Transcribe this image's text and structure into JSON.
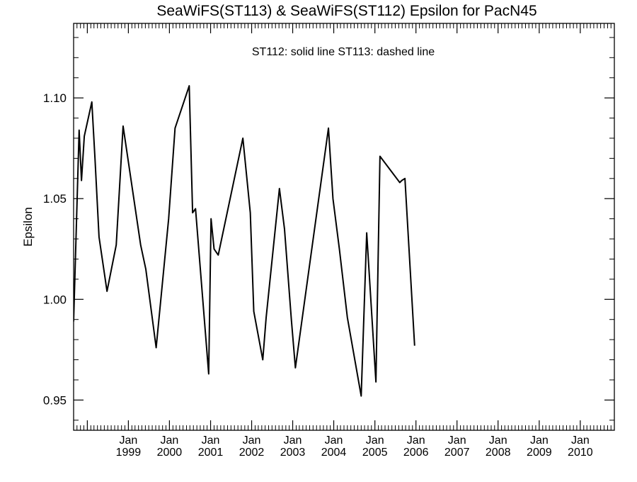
{
  "chart_data": {
    "type": "line",
    "title": "SeaWiFS(ST113) & SeaWiFS(ST112)  Epsilon for PacN45",
    "annotation": "ST112: solid line   ST113: dashed line",
    "xlabel": "",
    "ylabel": "Epsilon",
    "xlim": [
      "1997-09-01",
      "2010-10-31"
    ],
    "ylim": [
      0.935,
      1.137
    ],
    "grid": false,
    "legend": "none",
    "y_ticks": [
      {
        "value": 0.95,
        "label": "0.95"
      },
      {
        "value": 1.0,
        "label": "1.00"
      },
      {
        "value": 1.05,
        "label": "1.05"
      },
      {
        "value": 1.1,
        "label": "1.10"
      }
    ],
    "x_ticks": [
      {
        "date": "1999-01-01",
        "month": "Jan",
        "year": "1999"
      },
      {
        "date": "2000-01-01",
        "month": "Jan",
        "year": "2000"
      },
      {
        "date": "2001-01-01",
        "month": "Jan",
        "year": "2001"
      },
      {
        "date": "2002-01-01",
        "month": "Jan",
        "year": "2002"
      },
      {
        "date": "2003-01-01",
        "month": "Jan",
        "year": "2003"
      },
      {
        "date": "2004-01-01",
        "month": "Jan",
        "year": "2004"
      },
      {
        "date": "2005-01-01",
        "month": "Jan",
        "year": "2005"
      },
      {
        "date": "2006-01-01",
        "month": "Jan",
        "year": "2006"
      },
      {
        "date": "2007-01-01",
        "month": "Jan",
        "year": "2007"
      },
      {
        "date": "2008-01-01",
        "month": "Jan",
        "year": "2008"
      },
      {
        "date": "2009-01-01",
        "month": "Jan",
        "year": "2009"
      },
      {
        "date": "2010-01-01",
        "month": "Jan",
        "year": "2010"
      }
    ],
    "series": [
      {
        "style": "solid",
        "color": "#000000",
        "points": [
          [
            "1997-09-01",
            0.989
          ],
          [
            "1997-10-20",
            1.084
          ],
          [
            "1997-11-10",
            1.059
          ],
          [
            "1997-12-05",
            1.081
          ],
          [
            "1998-02-10",
            1.098
          ],
          [
            "1998-03-10",
            1.07
          ],
          [
            "1998-04-15",
            1.031
          ],
          [
            "1998-06-25",
            1.004
          ],
          [
            "1998-09-15",
            1.027
          ],
          [
            "1998-11-15",
            1.086
          ],
          [
            "1999-04-20",
            1.027
          ],
          [
            "1999-06-05",
            1.015
          ],
          [
            "1999-09-05",
            0.976
          ],
          [
            "1999-12-25",
            1.04
          ],
          [
            "2000-02-20",
            1.085
          ],
          [
            "2000-05-20",
            1.1
          ],
          [
            "2000-06-25",
            1.106
          ],
          [
            "2000-07-25",
            1.043
          ],
          [
            "2000-08-20",
            1.045
          ],
          [
            "2000-12-15",
            0.963
          ],
          [
            "2001-01-05",
            1.04
          ],
          [
            "2001-02-01",
            1.025
          ],
          [
            "2001-03-10",
            1.022
          ],
          [
            "2001-10-15",
            1.08
          ],
          [
            "2001-12-20",
            1.043
          ],
          [
            "2002-01-20",
            0.994
          ],
          [
            "2002-04-10",
            0.97
          ],
          [
            "2002-05-10",
            0.991
          ],
          [
            "2002-09-05",
            1.055
          ],
          [
            "2002-10-20",
            1.035
          ],
          [
            "2002-12-20",
            0.99
          ],
          [
            "2003-01-25",
            0.966
          ],
          [
            "2003-11-15",
            1.085
          ],
          [
            "2003-12-25",
            1.05
          ],
          [
            "2004-02-20",
            1.025
          ],
          [
            "2004-05-01",
            0.991
          ],
          [
            "2004-09-01",
            0.952
          ],
          [
            "2004-10-20",
            1.033
          ],
          [
            "2005-02-15",
            1.071
          ],
          [
            "2005-08-10",
            1.058
          ],
          [
            "2005-08-28",
            1.059
          ],
          [
            "2005-09-25",
            1.06
          ],
          [
            "2005-12-20",
            0.977
          ],
          [
            "2005-01-10",
            0.959
          ]
        ]
      }
    ]
  }
}
